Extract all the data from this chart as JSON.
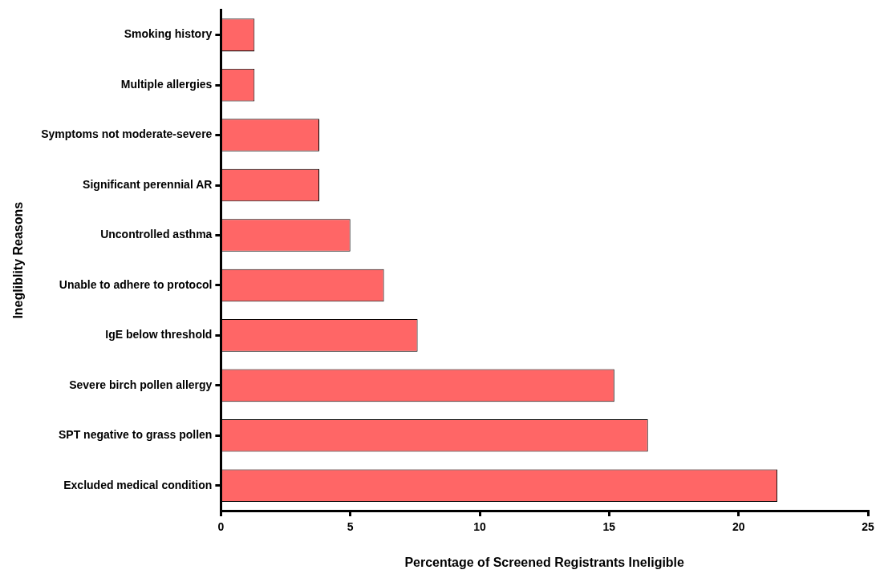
{
  "chart_data": {
    "type": "bar",
    "orientation": "horizontal",
    "xlabel": "Percentage of Screened Registrants Ineligible",
    "ylabel": "Inegliblity Reasons",
    "categories": [
      "Smoking history",
      "Multiple allergies",
      "Symptoms not moderate-severe",
      "Significant perennial AR",
      "Uncontrolled asthma",
      "Unable to adhere to protocol",
      "IgE below threshold",
      "Severe birch pollen allergy",
      "SPT negative to grass pollen",
      "Excluded medical condition"
    ],
    "values": [
      1.3,
      1.3,
      3.8,
      3.8,
      5.0,
      6.3,
      7.6,
      15.2,
      16.5,
      21.5
    ],
    "color": "#ff6666",
    "xlim": [
      0,
      25
    ],
    "xticks": [
      0,
      5,
      10,
      15,
      20,
      25
    ],
    "grid": false,
    "legend": false
  }
}
